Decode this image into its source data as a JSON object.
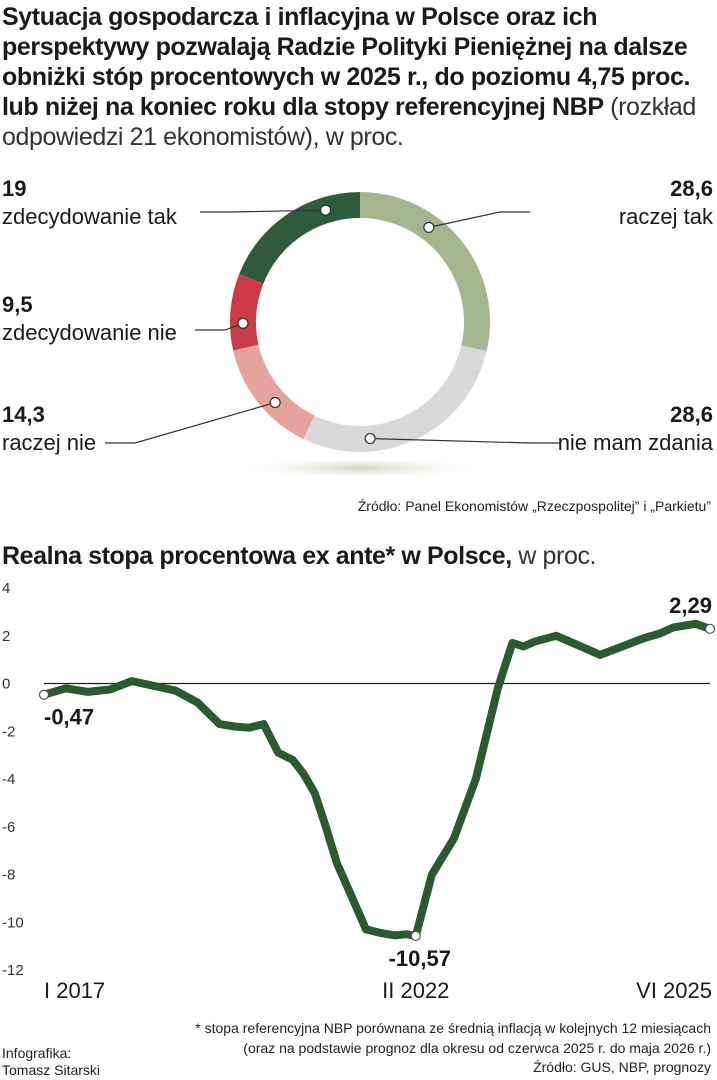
{
  "donut": {
    "title_bold": "Sytuacja gospodarcza i inflacyjna w Polsce oraz ich perspektywy pozwalają Radzie Polityki Pieniężnej na dalsze obniżki stóp procentowych w 2025 r., do poziomu 4,75 proc. lub niżej na koniec roku dla stopy referencyjnej NBP",
    "title_light": " (rozkład odpowiedzi 21 ekonomistów), w proc.",
    "source": "Źródło: Panel Ekonomistów „Rzeczpospolitej” i „Parkietu”"
  },
  "line": {
    "title_bold": "Realna stopa procentowa ex ante* w Polsce,",
    "title_light": " w proc.",
    "footnote1": "* stopa referencyjna NBP porównana ze średnią inflacją w kolejnych 12 miesiącach",
    "footnote2": "(oraz na podstawie prognoz dla okresu od czerwca 2025 r. do maja 2026 r.)",
    "source": "Źródło: GUS, NBP, prognozy"
  },
  "credit": {
    "line1": "Infografika:",
    "line2": "Tomasz Sitarski"
  },
  "chart_data": [
    {
      "type": "pie",
      "title": "",
      "slices": [
        {
          "label": "raczej tak",
          "value_text": "28,6",
          "value": 28.6,
          "color": "#a6b58f"
        },
        {
          "label": "nie mam zdania",
          "value_text": "28,6",
          "value": 28.6,
          "color": "#d9d9d9"
        },
        {
          "label": "raczej nie",
          "value_text": "14,3",
          "value": 14.3,
          "color": "#e6a29d"
        },
        {
          "label": "zdecydowanie nie",
          "value_text": "9,5",
          "value": 9.5,
          "color": "#cc3a47"
        },
        {
          "label": "zdecydowanie tak",
          "value_text": "19",
          "value": 19,
          "color": "#2e5b3c"
        }
      ]
    },
    {
      "type": "line",
      "title": "",
      "xlabel": "",
      "ylabel": "",
      "xlim": [
        2017.0,
        2026.1
      ],
      "ylim": [
        -12,
        4
      ],
      "yticks": [
        4,
        2,
        0,
        -2,
        -4,
        -6,
        -8,
        -10,
        -12
      ],
      "xtick_labels": [
        {
          "label": "I 2017",
          "x": 2017.0
        },
        {
          "label": "II 2022",
          "x": 2022.08
        },
        {
          "label": "VI 2025",
          "x": 2025.42
        }
      ],
      "line_color": "#2a5a2f",
      "annotations": [
        {
          "text": "-0,47",
          "x": 2017.0,
          "y": -0.47
        },
        {
          "text": "-10,57",
          "x": 2022.08,
          "y": -10.57
        },
        {
          "text": "2,29",
          "x": 2026.1,
          "y": 2.29
        }
      ],
      "series": [
        {
          "x": [
            2017.0,
            2017.3,
            2017.6,
            2017.9,
            2018.2,
            2018.5,
            2018.8,
            2019.1,
            2019.4,
            2019.6,
            2019.8,
            2020.0,
            2020.2,
            2020.4,
            2020.55,
            2020.7,
            2020.85,
            2021.0,
            2021.2,
            2021.4,
            2021.6,
            2021.8,
            2021.95,
            2022.08,
            2022.3,
            2022.6,
            2022.9,
            2023.2,
            2023.4,
            2023.55,
            2023.7,
            2024.0,
            2024.3,
            2024.6,
            2024.9,
            2025.2,
            2025.42,
            2025.6,
            2025.9,
            2026.1
          ],
          "y": [
            -0.47,
            -0.2,
            -0.35,
            -0.25,
            0.1,
            -0.1,
            -0.3,
            -0.8,
            -1.7,
            -1.8,
            -1.85,
            -1.7,
            -2.9,
            -3.2,
            -3.8,
            -4.6,
            -6.0,
            -7.5,
            -8.9,
            -10.3,
            -10.45,
            -10.55,
            -10.5,
            -10.57,
            -8.0,
            -6.5,
            -4.0,
            -0.2,
            1.7,
            1.55,
            1.75,
            2.0,
            1.6,
            1.2,
            1.55,
            1.9,
            2.1,
            2.35,
            2.5,
            2.29
          ]
        }
      ]
    }
  ]
}
